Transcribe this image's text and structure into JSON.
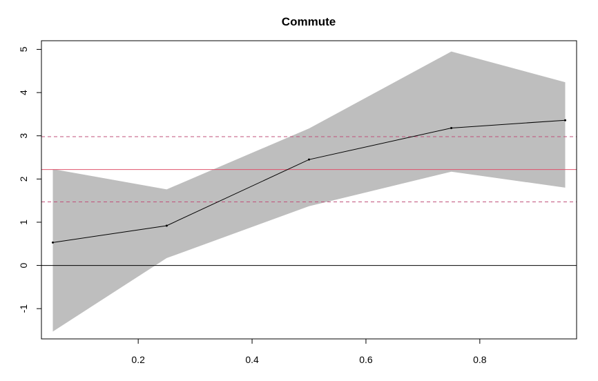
{
  "chart_data": {
    "type": "line",
    "title": "Commute",
    "xlabel": "",
    "ylabel": "",
    "xlim": [
      0.03,
      0.97
    ],
    "ylim": [
      -1.7,
      5.2
    ],
    "x_ticks": [
      0.2,
      0.4,
      0.6,
      0.8
    ],
    "y_ticks": [
      -1,
      0,
      1,
      2,
      3,
      4,
      5
    ],
    "x_tick_labels": [
      "0.2",
      "0.4",
      "0.6",
      "0.8"
    ],
    "y_tick_labels": [
      "-1",
      "0",
      "1",
      "2",
      "3",
      "4",
      "5"
    ],
    "grid": false,
    "legend": "none",
    "series": [
      {
        "x": [
          0.05,
          0.25,
          0.5,
          0.75,
          0.95
        ],
        "values": [
          0.53,
          0.92,
          2.45,
          3.18,
          3.36
        ],
        "color": "#000000"
      }
    ],
    "band": {
      "x": [
        0.05,
        0.25,
        0.5,
        0.75,
        0.95
      ],
      "lower": [
        -1.53,
        0.17,
        1.37,
        2.17,
        1.8
      ],
      "upper": [
        2.23,
        1.76,
        3.17,
        4.95,
        4.24
      ],
      "color": "#bebebe"
    },
    "reference_lines": [
      {
        "y": 0,
        "color": "#000000",
        "style": "solid"
      },
      {
        "y": 2.22,
        "color": "#df536b",
        "style": "solid"
      },
      {
        "y": 1.47,
        "color": "#c0507a",
        "style": "dashed"
      },
      {
        "y": 2.98,
        "color": "#c0507a",
        "style": "dashed"
      }
    ]
  }
}
